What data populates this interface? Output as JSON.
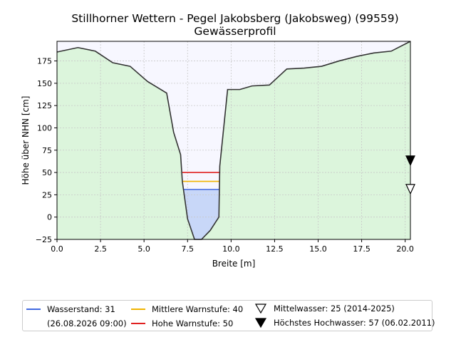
{
  "chart_data": {
    "type": "area",
    "title": "Stillhorner Wettern - Pegel Jakobsberg (Jakobsweg) (99559)",
    "subtitle": "Gewässerprofil",
    "xlabel": "Breite [m]",
    "ylabel": "Höhe über NHN [cm]",
    "xlim": [
      0.0,
      20.3
    ],
    "ylim": [
      -25,
      197
    ],
    "xticks": [
      0.0,
      2.5,
      5.0,
      7.5,
      10.0,
      12.5,
      15.0,
      17.5,
      20.0
    ],
    "xtick_labels": [
      "0.0",
      "2.5",
      "5.0",
      "7.5",
      "10.0",
      "12.5",
      "15.0",
      "17.5",
      "20.0"
    ],
    "yticks": [
      -25,
      0,
      25,
      50,
      75,
      100,
      125,
      150,
      175
    ],
    "ytick_labels": [
      "−25",
      "0",
      "25",
      "50",
      "75",
      "100",
      "125",
      "150",
      "175"
    ],
    "grid": true,
    "profile": {
      "x": [
        0.0,
        1.2,
        2.2,
        3.2,
        4.2,
        5.2,
        6.3,
        6.7,
        7.1,
        7.2,
        7.5,
        7.9,
        8.3,
        8.8,
        9.3,
        9.35,
        9.8,
        10.5,
        11.2,
        12.2,
        13.2,
        14.2,
        15.2,
        16.2,
        17.2,
        18.2,
        19.2,
        20.3
      ],
      "y": [
        185,
        190,
        186,
        173,
        169,
        152,
        139,
        95,
        70,
        40,
        -2,
        -25,
        -25,
        -15,
        0,
        57,
        143,
        143,
        147,
        148,
        166,
        167,
        169,
        175,
        180,
        184,
        186,
        197
      ]
    },
    "levels": [
      {
        "name": "Wasserstand",
        "value": 31,
        "x_range": [
          7.25,
          9.35
        ],
        "color": "#4169e1"
      },
      {
        "name": "Mittlere Warnstufe",
        "value": 40,
        "x_range": [
          7.2,
          9.35
        ],
        "color": "#f0b400"
      },
      {
        "name": "Hohe Warnstufe",
        "value": 50,
        "x_range": [
          7.2,
          9.35
        ],
        "color": "#e02020"
      }
    ],
    "markers": [
      {
        "name": "Mittelwasser",
        "x": 20.3,
        "y": 31,
        "style": "open-triangle-down"
      },
      {
        "name": "Höchstes Hochwasser",
        "x": 20.3,
        "y": 63,
        "style": "filled-triangle-down"
      }
    ],
    "colors": {
      "ground": "#dcf5dc",
      "sky": "#f7f7ff",
      "water": "#c8d7f8",
      "profile_line": "#333333"
    },
    "legend": {
      "placement": "bottom",
      "entries": [
        {
          "label": "Wasserstand: 31",
          "sub": "(26.08.2026 09:00)",
          "color": "#4169e1",
          "kind": "line"
        },
        {
          "label": "Mittlere Warnstufe: 40",
          "color": "#f0b400",
          "kind": "line"
        },
        {
          "label": "Hohe Warnstufe: 50",
          "color": "#e02020",
          "kind": "line"
        },
        {
          "label": "Mittelwasser: 25 (2014-2025)",
          "kind": "open-triangle-down"
        },
        {
          "label": "Höchstes Hochwasser: 57 (06.02.2011)",
          "kind": "filled-triangle-down"
        }
      ]
    }
  }
}
